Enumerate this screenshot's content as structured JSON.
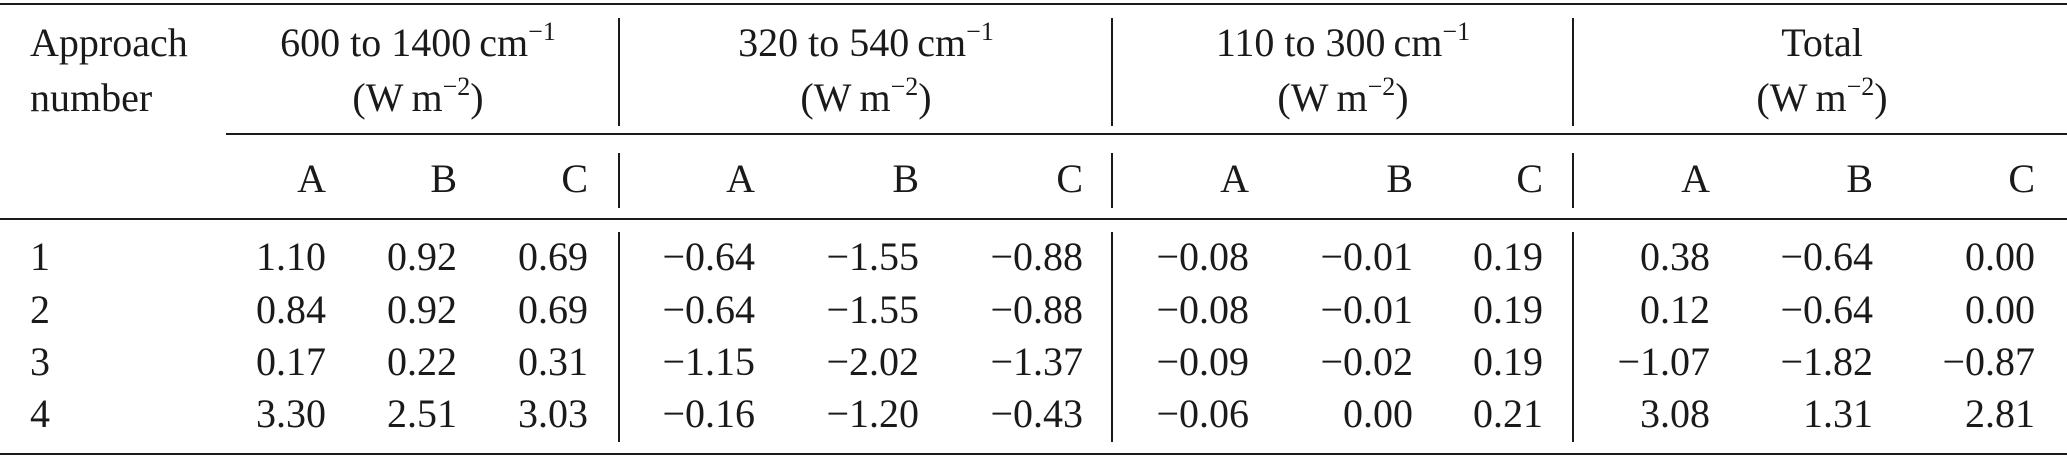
{
  "table": {
    "stub_header": [
      "Approach",
      "number"
    ],
    "groups": [
      {
        "range": "600 to 1400 cm",
        "range_exp": "−1",
        "unit": "(W m",
        "unit_exp": "−2",
        "unit_close": ")"
      },
      {
        "range": "320 to 540 cm",
        "range_exp": "−1",
        "unit": "(W m",
        "unit_exp": "−2",
        "unit_close": ")"
      },
      {
        "range": "110 to 300 cm",
        "range_exp": "−1",
        "unit": "(W m",
        "unit_exp": "−2",
        "unit_close": ")"
      },
      {
        "range": "Total",
        "range_exp": "",
        "unit": "(W m",
        "unit_exp": "−2",
        "unit_close": ")"
      }
    ],
    "sub_headers": [
      "A",
      "B",
      "C",
      "A",
      "B",
      "C",
      "A",
      "B",
      "C",
      "A",
      "B",
      "C"
    ],
    "rows": [
      {
        "n": "1",
        "cells": [
          "1.10",
          "0.92",
          "0.69",
          "−0.64",
          "−1.55",
          "−0.88",
          "−0.08",
          "−0.01",
          "0.19",
          "0.38",
          "−0.64",
          "0.00"
        ]
      },
      {
        "n": "2",
        "cells": [
          "0.84",
          "0.92",
          "0.69",
          "−0.64",
          "−1.55",
          "−0.88",
          "−0.08",
          "−0.01",
          "0.19",
          "0.12",
          "−0.64",
          "0.00"
        ]
      },
      {
        "n": "3",
        "cells": [
          "0.17",
          "0.22",
          "0.31",
          "−1.15",
          "−2.02",
          "−1.37",
          "−0.09",
          "−0.02",
          "0.19",
          "−1.07",
          "−1.82",
          "−0.87"
        ]
      },
      {
        "n": "4",
        "cells": [
          "3.30",
          "2.51",
          "3.03",
          "−0.16",
          "−1.20",
          "−0.43",
          "−0.06",
          "0.00",
          "0.21",
          "3.08",
          "1.31",
          "2.81"
        ]
      }
    ]
  }
}
